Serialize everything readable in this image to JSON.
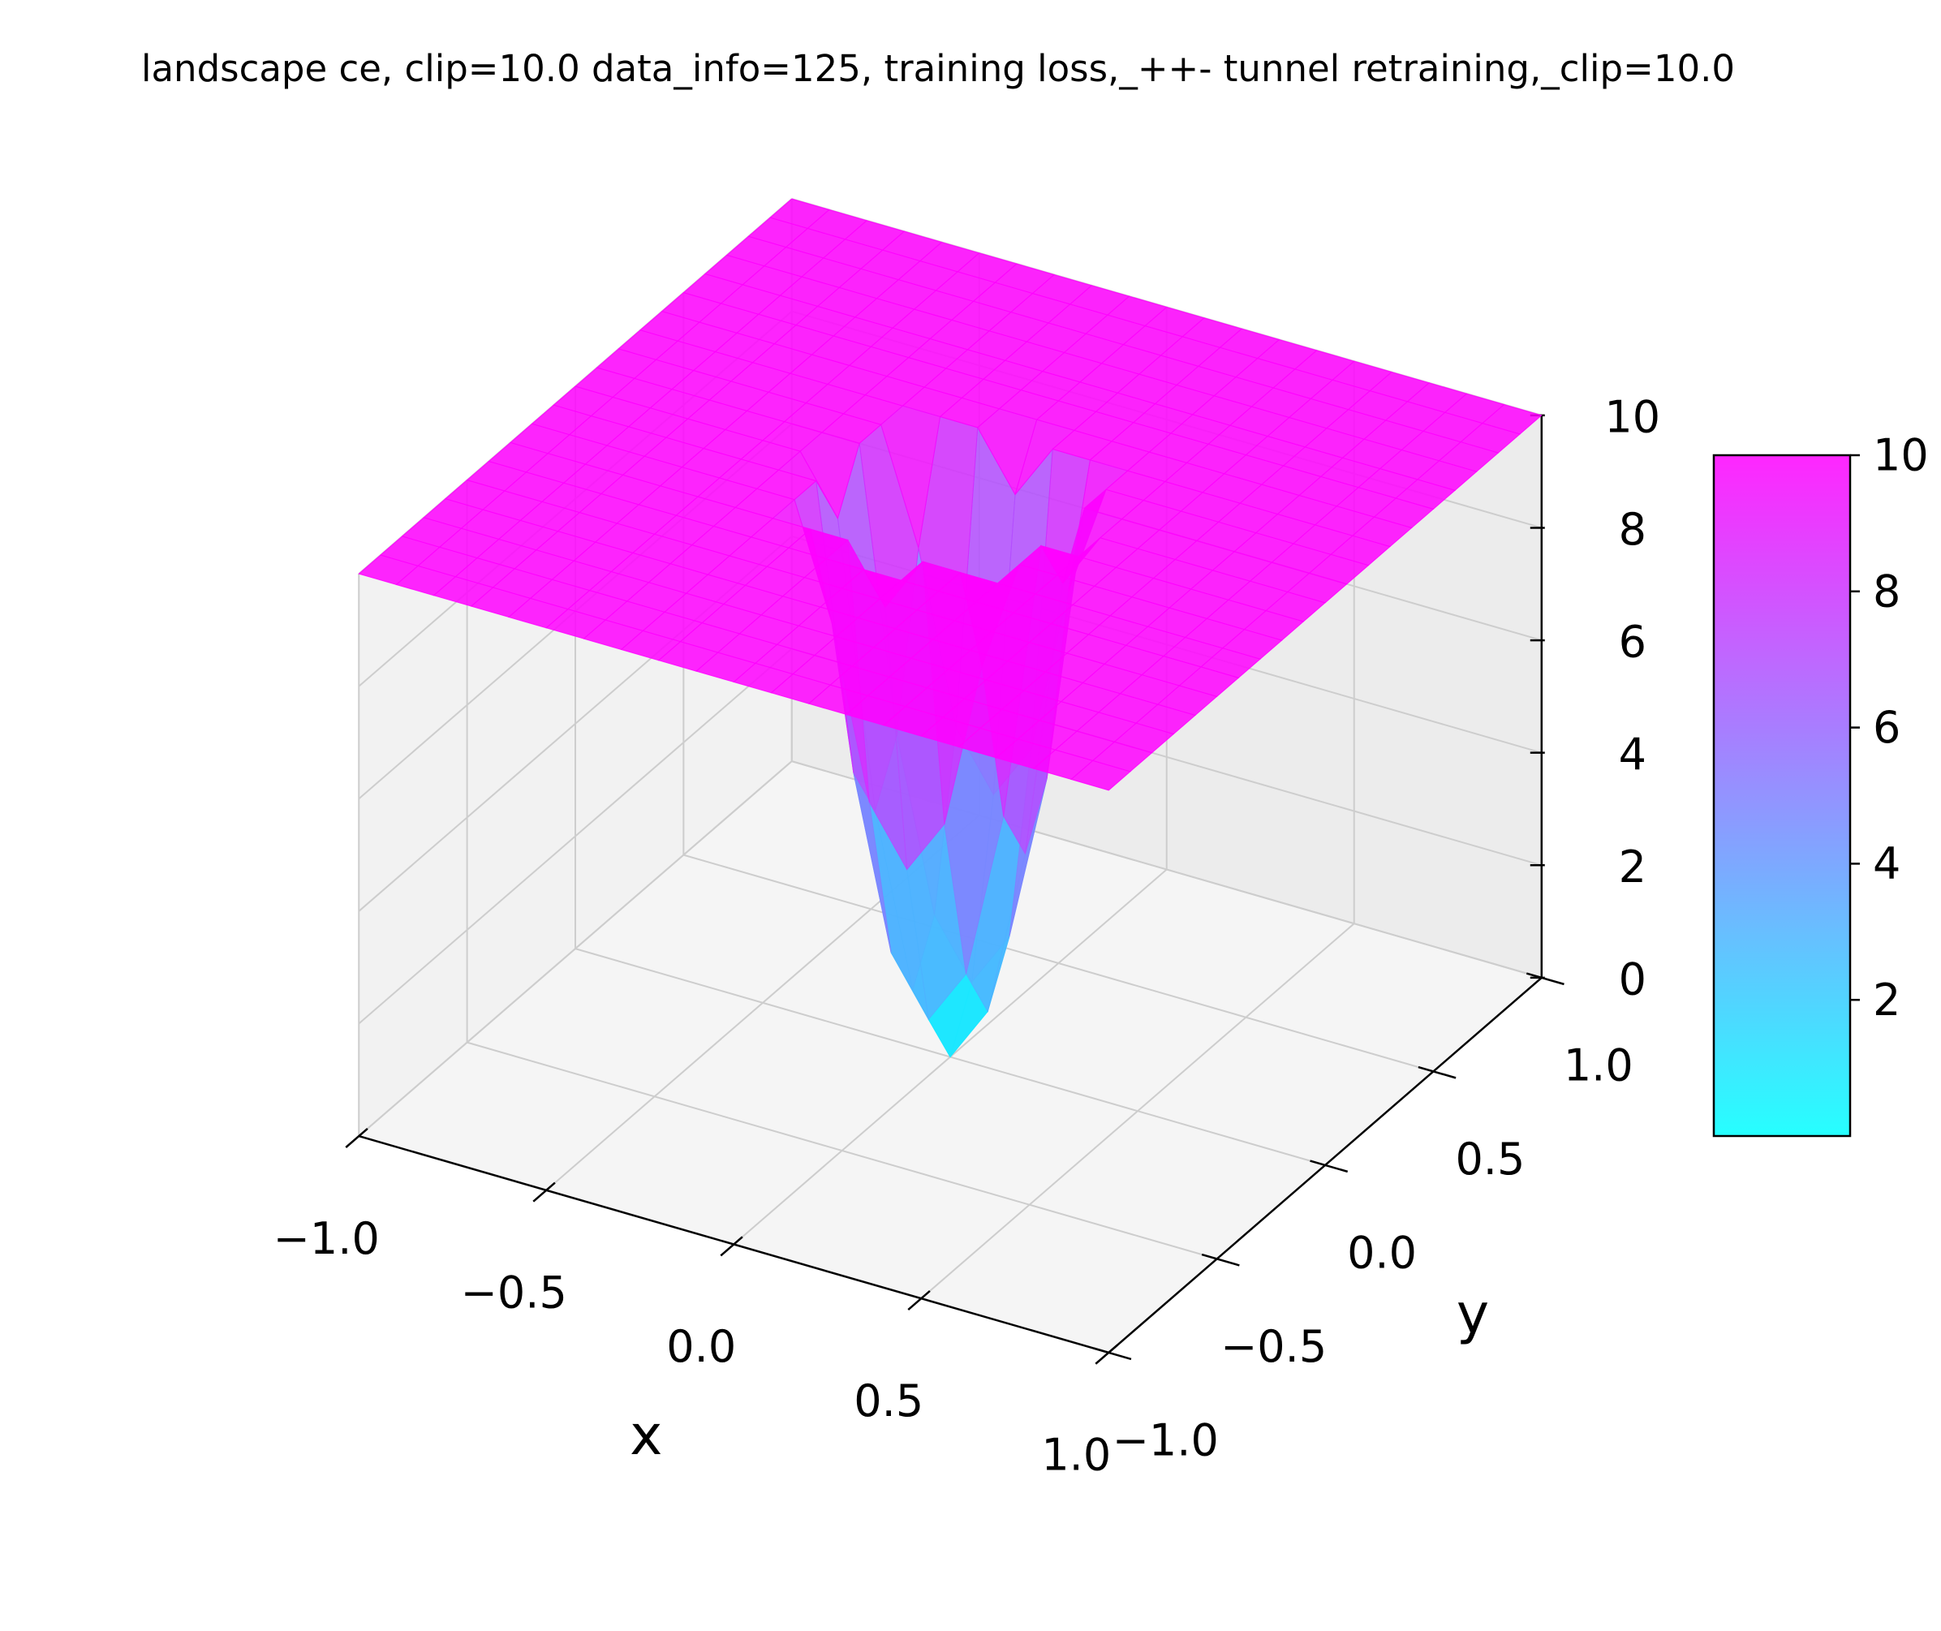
{
  "chart_data": {
    "type": "surface3d",
    "title": "landscape ce, clip=10.0 data_info=125, training loss,_++- tunnel retraining,_clip=10.0",
    "xlabel": "x",
    "ylabel": "y",
    "x": [
      -1,
      -0.9,
      -0.8,
      -0.7,
      -0.6,
      -0.5,
      -0.4,
      -0.3,
      -0.2,
      -0.1,
      0,
      0.1,
      0.2,
      0.3,
      0.4,
      0.5,
      0.6,
      0.7,
      0.8,
      0.9,
      1
    ],
    "y": [
      -1,
      -0.9,
      -0.8,
      -0.7,
      -0.6,
      -0.5,
      -0.4,
      -0.3,
      -0.2,
      -0.1,
      0,
      0.1,
      0.2,
      0.3,
      0.4,
      0.5,
      0.6,
      0.7,
      0.8,
      0.9,
      1
    ],
    "z": [
      [
        10,
        10,
        10,
        10,
        10,
        10,
        10,
        10,
        10,
        10,
        10,
        10,
        10,
        10,
        10,
        10,
        10,
        10,
        10,
        10,
        10
      ],
      [
        10,
        10,
        10,
        10,
        10,
        10,
        10,
        10,
        10,
        10,
        10,
        10,
        10,
        10,
        10,
        10,
        10,
        10,
        10,
        10,
        10
      ],
      [
        10,
        10,
        10,
        10,
        10,
        10,
        10,
        10,
        10,
        10,
        10,
        10,
        10,
        10,
        10,
        10,
        10,
        10,
        10,
        10,
        10
      ],
      [
        10,
        10,
        10,
        10,
        10,
        10,
        10,
        10,
        10,
        10,
        10,
        10,
        10,
        10,
        10,
        10,
        10,
        10,
        10,
        10,
        10
      ],
      [
        10,
        10,
        10,
        10,
        10,
        10,
        10,
        10,
        10,
        10,
        10,
        10,
        10,
        10,
        10,
        10,
        10,
        10,
        10,
        10,
        10
      ],
      [
        10,
        10,
        10,
        10,
        10,
        10,
        10,
        10,
        10,
        10,
        10,
        10,
        10,
        10,
        10,
        10,
        10,
        10,
        10,
        10,
        10
      ],
      [
        10,
        10,
        10,
        10,
        10,
        10,
        10,
        10,
        10,
        10,
        10,
        10,
        10,
        10,
        10,
        10,
        10,
        10,
        10,
        10,
        10
      ],
      [
        10,
        10,
        10,
        10,
        10,
        10,
        10,
        10,
        10,
        10,
        9,
        10,
        10,
        10,
        10,
        10,
        10,
        10,
        10,
        10,
        10
      ],
      [
        10,
        10,
        10,
        10,
        10,
        10,
        10,
        10,
        8,
        5,
        4,
        5,
        8,
        10,
        10,
        10,
        10,
        10,
        10,
        10,
        10
      ],
      [
        10,
        10,
        10,
        10,
        10,
        10,
        10,
        10,
        5,
        2,
        1,
        2,
        5,
        10,
        10,
        10,
        10,
        10,
        10,
        10,
        10
      ],
      [
        10,
        10,
        10,
        10,
        10,
        10,
        10,
        9,
        4,
        1,
        0,
        1,
        4,
        9,
        10,
        10,
        10,
        10,
        10,
        10,
        10
      ],
      [
        10,
        10,
        10,
        10,
        10,
        10,
        10,
        10,
        5,
        2,
        1,
        2,
        5,
        10,
        10,
        10,
        10,
        10,
        10,
        10,
        10
      ],
      [
        10,
        10,
        10,
        10,
        10,
        10,
        10,
        10,
        8,
        5,
        4,
        5,
        8,
        10,
        10,
        10,
        10,
        10,
        10,
        10,
        10
      ],
      [
        10,
        10,
        10,
        10,
        10,
        10,
        10,
        10,
        10,
        10,
        9,
        10,
        10,
        10,
        10,
        10,
        10,
        10,
        10,
        10,
        10
      ],
      [
        10,
        10,
        10,
        10,
        10,
        10,
        10,
        10,
        10,
        10,
        10,
        10,
        10,
        10,
        10,
        10,
        10,
        10,
        10,
        10,
        10
      ],
      [
        10,
        10,
        10,
        10,
        10,
        10,
        10,
        10,
        10,
        10,
        10,
        10,
        10,
        10,
        10,
        10,
        10,
        10,
        10,
        10,
        10
      ],
      [
        10,
        10,
        10,
        10,
        10,
        10,
        10,
        10,
        10,
        10,
        10,
        10,
        10,
        10,
        10,
        10,
        10,
        10,
        10,
        10,
        10
      ],
      [
        10,
        10,
        10,
        10,
        10,
        10,
        10,
        10,
        10,
        10,
        10,
        10,
        10,
        10,
        10,
        10,
        10,
        10,
        10,
        10,
        10
      ],
      [
        10,
        10,
        10,
        10,
        10,
        10,
        10,
        10,
        10,
        10,
        10,
        10,
        10,
        10,
        10,
        10,
        10,
        10,
        10,
        10,
        10
      ],
      [
        10,
        10,
        10,
        10,
        10,
        10,
        10,
        10,
        10,
        10,
        10,
        10,
        10,
        10,
        10,
        10,
        10,
        10,
        10,
        10,
        10
      ],
      [
        10,
        10,
        10,
        10,
        10,
        10,
        10,
        10,
        10,
        10,
        10,
        10,
        10,
        10,
        10,
        10,
        10,
        10,
        10,
        10,
        10
      ]
    ],
    "xlim": [
      -1,
      1
    ],
    "ylim": [
      -1,
      1
    ],
    "zlim": [
      0,
      10
    ],
    "xticks": [
      {
        "value": -1,
        "label": "−1.0"
      },
      {
        "value": -0.5,
        "label": "−0.5"
      },
      {
        "value": 0,
        "label": "0.0"
      },
      {
        "value": 0.5,
        "label": "0.5"
      },
      {
        "value": 1,
        "label": "1.0"
      }
    ],
    "yticks": [
      {
        "value": -1,
        "label": "−1.0"
      },
      {
        "value": -0.5,
        "label": "−0.5"
      },
      {
        "value": 0,
        "label": "0.0"
      },
      {
        "value": 0.5,
        "label": "0.5"
      },
      {
        "value": 1,
        "label": "1.0"
      }
    ],
    "zticks": [
      0,
      2,
      4,
      6,
      8,
      10
    ],
    "colormap": "cool",
    "clim": [
      0,
      10
    ],
    "colorbar_ticks": [
      2,
      4,
      6,
      8,
      10
    ],
    "grid": true
  }
}
